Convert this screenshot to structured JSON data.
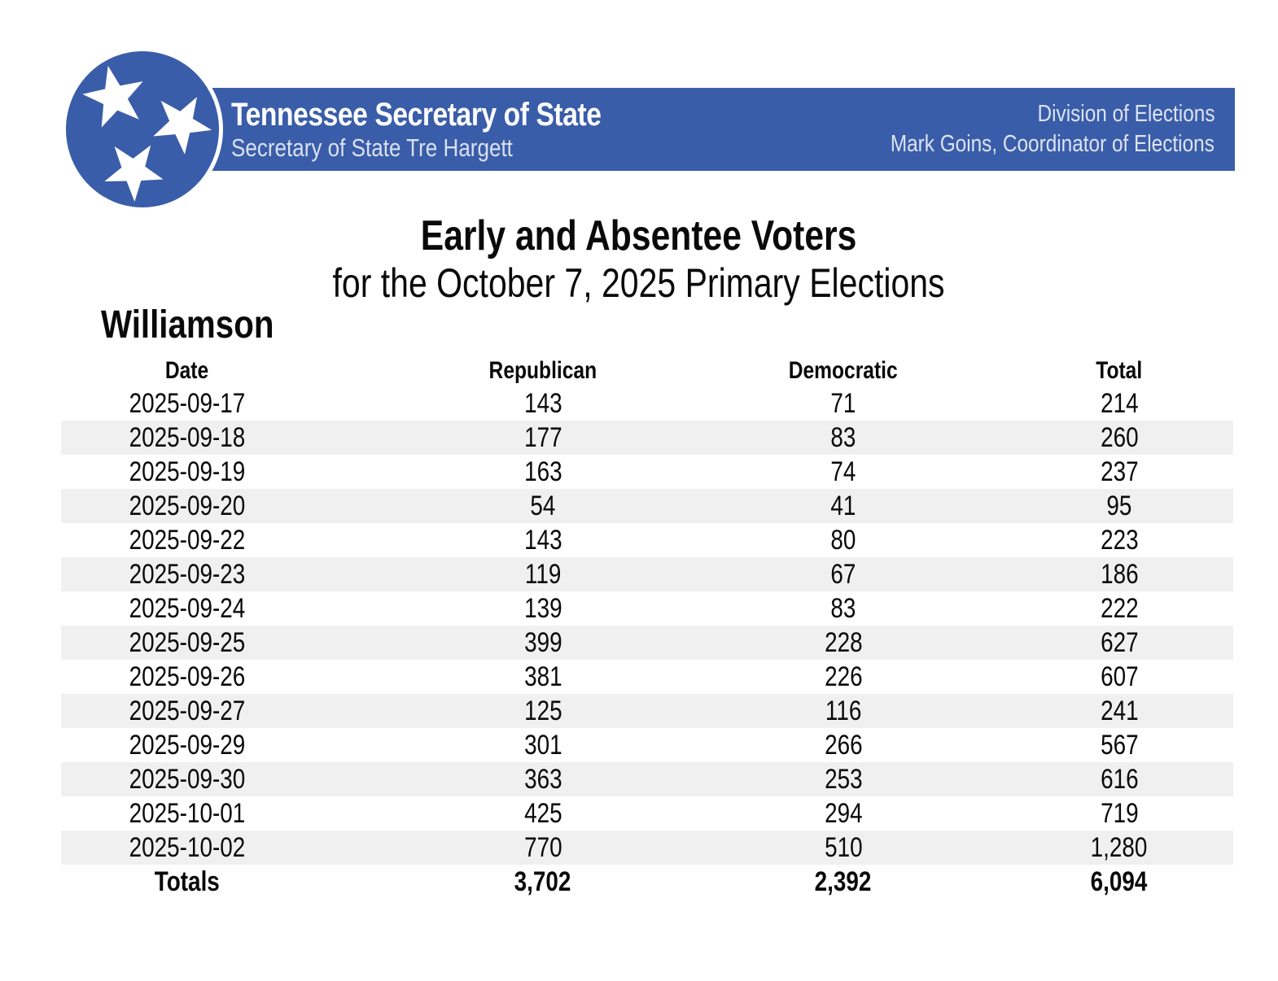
{
  "banner": {
    "title": "Tennessee Secretary of State",
    "subtitle": "Secretary of State Tre Hargett",
    "right_line1": "Division of Elections",
    "right_line2": "Mark Goins, Coordinator of Elections"
  },
  "title": {
    "line1": "Early and Absentee Voters",
    "line2": "for the October 7, 2025 Primary Elections"
  },
  "county": "Williamson",
  "table": {
    "columns": [
      "Date",
      "Republican",
      "Democratic",
      "Total"
    ],
    "rows": [
      [
        "2025-09-17",
        "143",
        "71",
        "214"
      ],
      [
        "2025-09-18",
        "177",
        "83",
        "260"
      ],
      [
        "2025-09-19",
        "163",
        "74",
        "237"
      ],
      [
        "2025-09-20",
        "54",
        "41",
        "95"
      ],
      [
        "2025-09-22",
        "143",
        "80",
        "223"
      ],
      [
        "2025-09-23",
        "119",
        "67",
        "186"
      ],
      [
        "2025-09-24",
        "139",
        "83",
        "222"
      ],
      [
        "2025-09-25",
        "399",
        "228",
        "627"
      ],
      [
        "2025-09-26",
        "381",
        "226",
        "607"
      ],
      [
        "2025-09-27",
        "125",
        "116",
        "241"
      ],
      [
        "2025-09-29",
        "301",
        "266",
        "567"
      ],
      [
        "2025-09-30",
        "363",
        "253",
        "616"
      ],
      [
        "2025-10-01",
        "425",
        "294",
        "719"
      ],
      [
        "2025-10-02",
        "770",
        "510",
        "1,280"
      ]
    ],
    "totals": {
      "label": "Totals",
      "republican": "3,702",
      "democratic": "2,392",
      "total": "6,094"
    }
  },
  "colors": {
    "banner_blue": "#3A5DA9",
    "stripe_gray": "#F0F0F0",
    "banner_text_white": "#FFFFFF",
    "banner_text_soft": "#DCE3F2"
  },
  "icons": {
    "logo": "tennessee-tristar-logo"
  }
}
